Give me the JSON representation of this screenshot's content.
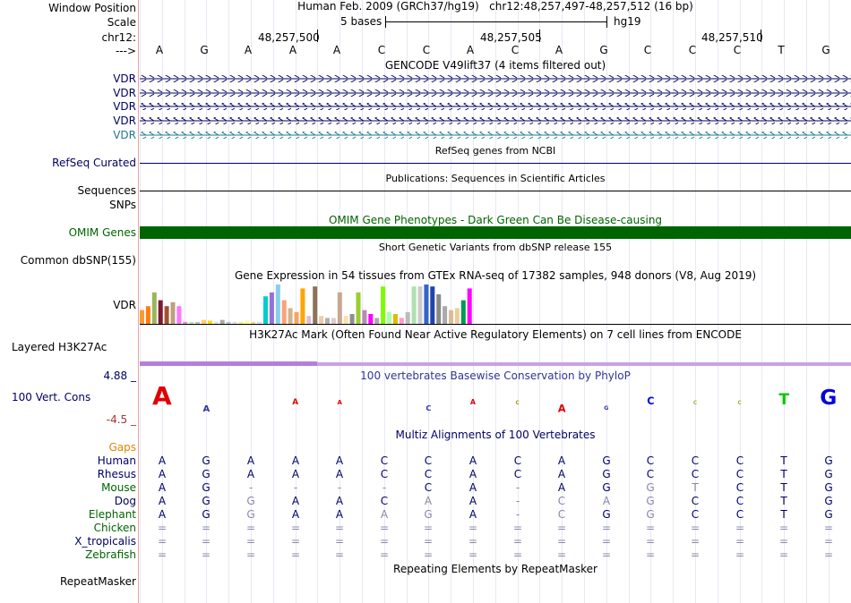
{
  "colors": {
    "nav": "#000066",
    "teal": "#1f7a8c",
    "green": "#006400",
    "orange": "#dd8800",
    "gold": "#cc7a00",
    "rose": "#aa3333",
    "phylop_line": "#555599",
    "h3k": "#c07fe0"
  },
  "header": {
    "window_position_label": "Window Position",
    "scale_label": "Scale",
    "chrom_label": "chr12:",
    "strand_label": "--->",
    "assembly_title": "Human Feb. 2009 (GRCh37/hg19)   chr12:48,257,497-48,257,512 (16 bp)",
    "scale_text": "5 bases",
    "db": "hg19",
    "coords": [
      "48,257,500",
      "48,257,505",
      "48,257,510"
    ]
  },
  "bases": [
    "A",
    "G",
    "A",
    "A",
    "A",
    "C",
    "C",
    "A",
    "C",
    "A",
    "G",
    "C",
    "C",
    "C",
    "T",
    "G"
  ],
  "gencode": {
    "title": "GENCODE V49lift37 (4 items filtered out)",
    "items": [
      "VDR",
      "VDR",
      "VDR",
      "VDR",
      "VDR"
    ]
  },
  "refseq": {
    "title": "RefSeq genes from NCBI",
    "label": "RefSeq Curated"
  },
  "publications": {
    "title": "Publications: Sequences in Scientific Articles",
    "label_seq": "Sequences",
    "label_snp": "SNPs"
  },
  "omim": {
    "title": "OMIM Gene Phenotypes - Dark Green Can Be Disease-causing",
    "label": "OMIM Genes"
  },
  "dbsnp": {
    "title": "Short Genetic Variants from dbSNP release 155",
    "label": "Common dbSNP(155)"
  },
  "gtex": {
    "title": "Gene Expression in 54 tissues from GTEx RNA-seq of 17382 samples, 948 donors (V8, Aug 2019)",
    "label": "VDR",
    "values": [
      0.35,
      0.45,
      0.8,
      0.6,
      0.45,
      0.55,
      0.45,
      0.05,
      0.05,
      0.05,
      0.1,
      0.08,
      0.05,
      0.1,
      0.05,
      0.05,
      0.05,
      0.08,
      0.05,
      0.05,
      0.7,
      0.8,
      1.0,
      0.6,
      0.4,
      0.3,
      0.9,
      0.2,
      0.95,
      0.2,
      0.15,
      0.15,
      0.8,
      0.2,
      0.25,
      0.8,
      0.35,
      0.25,
      0.15,
      0.95,
      0.3,
      0.25,
      0.15,
      0.3,
      0.95,
      0.95,
      1.0,
      0.95,
      0.75,
      0.45,
      0.35,
      0.4,
      0.6,
      0.9
    ],
    "colors": [
      "#ff9933",
      "#ff7f0e",
      "#9ab75a",
      "#7f1a33",
      "#a0522d",
      "#bba080",
      "#ff77ff",
      "#ee82ee",
      "#aaeeaa",
      "#c0c0c0",
      "#ffcc66",
      "#ffd700",
      "#dddddd",
      "#a9a9a9",
      "#b0c4de",
      "#dddddd",
      "#eeee88",
      "#ffff88",
      "#ffcc99",
      "#dddddd",
      "#00cccc",
      "#9370db",
      "#87ceeb",
      "#ffa07a",
      "#d2b48c",
      "#f4a460",
      "#ffa500",
      "#d8bfd8",
      "#8b7355",
      "#eeccaa",
      "#b0b0b0",
      "#dccccc",
      "#c8a890",
      "#ffdead",
      "#8f8f8f",
      "#9acd32",
      "#bb88bb",
      "#ff00ff",
      "#aaaaaa",
      "#7cfc00",
      "#aaffaa",
      "#e6b800",
      "#ff99cc",
      "#bbbbbb",
      "#b0e0b0",
      "#cccccc",
      "#3366cc",
      "#2244aa",
      "#888888",
      "#aaaaaa",
      "#ddbb99",
      "#eecc99",
      "#009955",
      "#ff00ff"
    ]
  },
  "h3k27ac": {
    "title": "H3K27Ac Mark (Often Found Near Active Regulatory Elements) on 7 cell lines from ENCODE",
    "label": "Layered H3K27Ac"
  },
  "phylop": {
    "title": "100 vertebrates Basewise Conservation by PhyloP",
    "label": "100 Vert. Cons",
    "max": "4.88 _",
    "min": "-4.5 _",
    "letters": [
      {
        "b": "A",
        "s": 2.0,
        "c": "#e00000",
        "y": "up"
      },
      {
        "b": "A",
        "s": 0.5,
        "c": "#3333aa",
        "y": "down"
      },
      {
        "b": "",
        "s": 0,
        "c": "#000",
        "y": "up"
      },
      {
        "b": "A",
        "s": 0.4,
        "c": "#e00000",
        "y": "up"
      },
      {
        "b": "A",
        "s": 0.25,
        "c": "#e00000",
        "y": "up"
      },
      {
        "b": "",
        "s": 0,
        "c": "#000",
        "y": "up"
      },
      {
        "b": "C",
        "s": 0.35,
        "c": "#3333aa",
        "y": "down"
      },
      {
        "b": "A",
        "s": 0.3,
        "c": "#e00000",
        "y": "up"
      },
      {
        "b": "C",
        "s": 0.15,
        "c": "#aa9900",
        "y": "up"
      },
      {
        "b": "A",
        "s": 0.6,
        "c": "#e00000",
        "y": "down"
      },
      {
        "b": "G",
        "s": 0.2,
        "c": "#3333aa",
        "y": "down"
      },
      {
        "b": "C",
        "s": 0.6,
        "c": "#0000dd",
        "y": "up"
      },
      {
        "b": "C",
        "s": 0.15,
        "c": "#aaaa33",
        "y": "up"
      },
      {
        "b": "C",
        "s": 0.15,
        "c": "#aaaa33",
        "y": "up"
      },
      {
        "b": "T",
        "s": 1.1,
        "c": "#00cc00",
        "y": "up"
      },
      {
        "b": "G",
        "s": 1.6,
        "c": "#0000dd",
        "y": "up"
      }
    ]
  },
  "multiz": {
    "title": "Multiz Alignments of 100 Vertebrates",
    "species": [
      {
        "name": "Human",
        "color": "#000066",
        "seq": [
          "A",
          "G",
          "A",
          "A",
          "A",
          "C",
          "C",
          "A",
          "C",
          "A",
          "G",
          "C",
          "C",
          "C",
          "T",
          "G"
        ]
      },
      {
        "name": "Rhesus",
        "color": "#000066",
        "seq": [
          "A",
          "G",
          "A",
          "A",
          "A",
          "C",
          "C",
          "A",
          "C",
          "A",
          "G",
          "C",
          "C",
          "C",
          "T",
          "G"
        ]
      },
      {
        "name": "Mouse",
        "color": "#006400",
        "seq": [
          "A",
          "G",
          "-",
          "-",
          "-",
          "-",
          "C",
          "A",
          "-",
          "A",
          "G",
          "G",
          "T",
          "C",
          "T",
          "G"
        ]
      },
      {
        "name": "Dog",
        "color": "#000066",
        "seq": [
          "A",
          "G",
          "G",
          "A",
          "A",
          "C",
          "A",
          "A",
          "-",
          "C",
          "A",
          "G",
          "C",
          "C",
          "T",
          "G"
        ]
      },
      {
        "name": "Elephant",
        "color": "#006400",
        "seq": [
          "A",
          "G",
          "G",
          "A",
          "A",
          "A",
          "G",
          "A",
          "-",
          "C",
          "G",
          "G",
          "C",
          "C",
          "T",
          "G"
        ]
      },
      {
        "name": "Chicken",
        "color": "#006400",
        "seq": [
          "=",
          "=",
          "=",
          "=",
          "=",
          "=",
          "=",
          "=",
          "=",
          "=",
          "=",
          "=",
          "=",
          "=",
          "=",
          "="
        ]
      },
      {
        "name": "X_tropicalis",
        "color": "#000066",
        "seq": [
          "=",
          "=",
          "=",
          "=",
          "=",
          "=",
          "=",
          "=",
          "=",
          "=",
          "=",
          "=",
          "=",
          "=",
          "=",
          "="
        ]
      },
      {
        "name": "Zebrafish",
        "color": "#006400",
        "seq": [
          "=",
          "=",
          "=",
          "=",
          "=",
          "=",
          "=",
          "=",
          "=",
          "=",
          "=",
          "=",
          "=",
          "=",
          "=",
          "="
        ]
      }
    ]
  },
  "repeatmasker": {
    "title": "Repeating Elements by RepeatMasker",
    "label": "RepeatMasker"
  }
}
